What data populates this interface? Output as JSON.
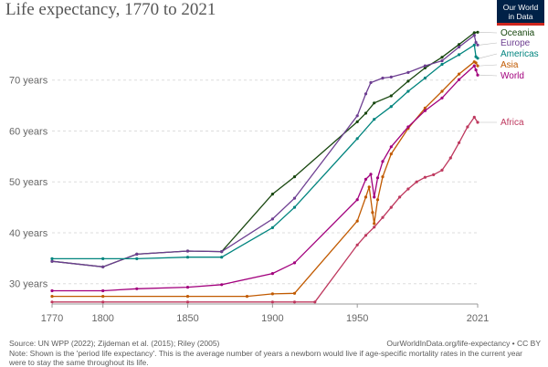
{
  "title": "Life expectancy, 1770 to 2021",
  "logo": {
    "line1": "Our World",
    "line2": "in Data"
  },
  "footer": {
    "source": "Source: UN WPP (2022); Zijdeman et al. (2015); Riley (2005)",
    "url": "OurWorldInData.org/life-expectancy • CC BY",
    "note": "Note: Shown is the 'period life expectancy'. This is the average number of years a newborn would live if age-specific mortality rates in the current year were to stay the same throughout its life."
  },
  "chart_data": {
    "type": "line",
    "title": "Life expectancy, 1770 to 2021",
    "xlabel": "",
    "ylabel": "",
    "xlim": [
      1770,
      2021
    ],
    "ylim": [
      26,
      80
    ],
    "x_ticks": [
      {
        "value": 1770,
        "label": "1770"
      },
      {
        "value": 1800,
        "label": "1800"
      },
      {
        "value": 1850,
        "label": "1850"
      },
      {
        "value": 1900,
        "label": "1900"
      },
      {
        "value": 1950,
        "label": "1950"
      },
      {
        "value": 2021,
        "label": "2021"
      }
    ],
    "y_ticks": [
      {
        "value": 30,
        "label": "30 years"
      },
      {
        "value": 40,
        "label": "40 years"
      },
      {
        "value": 50,
        "label": "50 years"
      },
      {
        "value": 60,
        "label": "60 years"
      },
      {
        "value": 70,
        "label": "70 years"
      }
    ],
    "grid": "horizontal dashed",
    "legend": "right (labels at line ends)",
    "series": [
      {
        "name": "Oceania",
        "color": "#18470f",
        "points": [
          [
            1770,
            34.4
          ],
          [
            1800,
            33.3
          ],
          [
            1820,
            35.8
          ],
          [
            1850,
            36.4
          ],
          [
            1870,
            36.3
          ],
          [
            1900,
            47.6
          ],
          [
            1913,
            51.0
          ],
          [
            1950,
            61.8
          ],
          [
            1955,
            63.5
          ],
          [
            1960,
            65.5
          ],
          [
            1970,
            66.9
          ],
          [
            1980,
            69.8
          ],
          [
            1990,
            72.4
          ],
          [
            2000,
            74.5
          ],
          [
            2010,
            77.0
          ],
          [
            2019,
            79.3
          ],
          [
            2021,
            79.4
          ]
        ]
      },
      {
        "name": "Europe",
        "color": "#6d3e91",
        "points": [
          [
            1770,
            34.4
          ],
          [
            1800,
            33.3
          ],
          [
            1820,
            35.8
          ],
          [
            1850,
            36.4
          ],
          [
            1870,
            36.3
          ],
          [
            1900,
            42.7
          ],
          [
            1913,
            46.8
          ],
          [
            1950,
            63.0
          ],
          [
            1955,
            67.3
          ],
          [
            1958,
            69.5
          ],
          [
            1965,
            70.4
          ],
          [
            1970,
            70.6
          ],
          [
            1980,
            71.5
          ],
          [
            1990,
            72.8
          ],
          [
            2000,
            73.8
          ],
          [
            2010,
            76.5
          ],
          [
            2019,
            78.8
          ],
          [
            2020,
            77.4
          ],
          [
            2021,
            76.9
          ]
        ]
      },
      {
        "name": "Americas",
        "color": "#00847e",
        "points": [
          [
            1770,
            34.9
          ],
          [
            1800,
            34.9
          ],
          [
            1820,
            34.9
          ],
          [
            1850,
            35.2
          ],
          [
            1870,
            35.2
          ],
          [
            1900,
            41.0
          ],
          [
            1913,
            45.0
          ],
          [
            1950,
            58.5
          ],
          [
            1960,
            62.3
          ],
          [
            1970,
            64.8
          ],
          [
            1980,
            67.8
          ],
          [
            1990,
            70.4
          ],
          [
            2000,
            73.1
          ],
          [
            2010,
            75.0
          ],
          [
            2019,
            76.9
          ],
          [
            2020,
            74.6
          ],
          [
            2021,
            74.3
          ]
        ]
      },
      {
        "name": "Asia",
        "color": "#c15a00",
        "points": [
          [
            1770,
            27.5
          ],
          [
            1800,
            27.5
          ],
          [
            1850,
            27.5
          ],
          [
            1885,
            27.5
          ],
          [
            1900,
            28.0
          ],
          [
            1913,
            28.1
          ],
          [
            1950,
            42.3
          ],
          [
            1955,
            47.0
          ],
          [
            1957,
            49.0
          ],
          [
            1959,
            44.0
          ],
          [
            1960,
            41.8
          ],
          [
            1962,
            46.5
          ],
          [
            1965,
            51.0
          ],
          [
            1970,
            55.5
          ],
          [
            1980,
            60.5
          ],
          [
            1990,
            64.5
          ],
          [
            2000,
            67.8
          ],
          [
            2010,
            71.2
          ],
          [
            2019,
            73.6
          ],
          [
            2020,
            73.4
          ],
          [
            2021,
            72.8
          ]
        ]
      },
      {
        "name": "World",
        "color": "#a2007d",
        "points": [
          [
            1770,
            28.6
          ],
          [
            1800,
            28.6
          ],
          [
            1820,
            29.0
          ],
          [
            1850,
            29.3
          ],
          [
            1870,
            29.8
          ],
          [
            1900,
            32.0
          ],
          [
            1913,
            34.1
          ],
          [
            1950,
            46.5
          ],
          [
            1955,
            50.5
          ],
          [
            1958,
            51.5
          ],
          [
            1960,
            47.0
          ],
          [
            1962,
            50.8
          ],
          [
            1965,
            54.0
          ],
          [
            1970,
            56.9
          ],
          [
            1980,
            60.8
          ],
          [
            1990,
            64.0
          ],
          [
            2000,
            66.5
          ],
          [
            2010,
            70.1
          ],
          [
            2019,
            72.8
          ],
          [
            2020,
            72.0
          ],
          [
            2021,
            71.0
          ]
        ]
      },
      {
        "name": "Africa",
        "color": "#be385e",
        "points": [
          [
            1770,
            26.4
          ],
          [
            1800,
            26.4
          ],
          [
            1850,
            26.4
          ],
          [
            1900,
            26.4
          ],
          [
            1913,
            26.4
          ],
          [
            1925,
            26.4
          ],
          [
            1950,
            37.6
          ],
          [
            1955,
            39.5
          ],
          [
            1960,
            41.1
          ],
          [
            1965,
            43.0
          ],
          [
            1970,
            45.0
          ],
          [
            1975,
            47.0
          ],
          [
            1980,
            48.6
          ],
          [
            1985,
            50.0
          ],
          [
            1990,
            50.9
          ],
          [
            1995,
            51.4
          ],
          [
            2000,
            52.3
          ],
          [
            2005,
            54.7
          ],
          [
            2010,
            57.7
          ],
          [
            2015,
            60.8
          ],
          [
            2019,
            62.7
          ],
          [
            2021,
            61.7
          ]
        ]
      }
    ]
  }
}
